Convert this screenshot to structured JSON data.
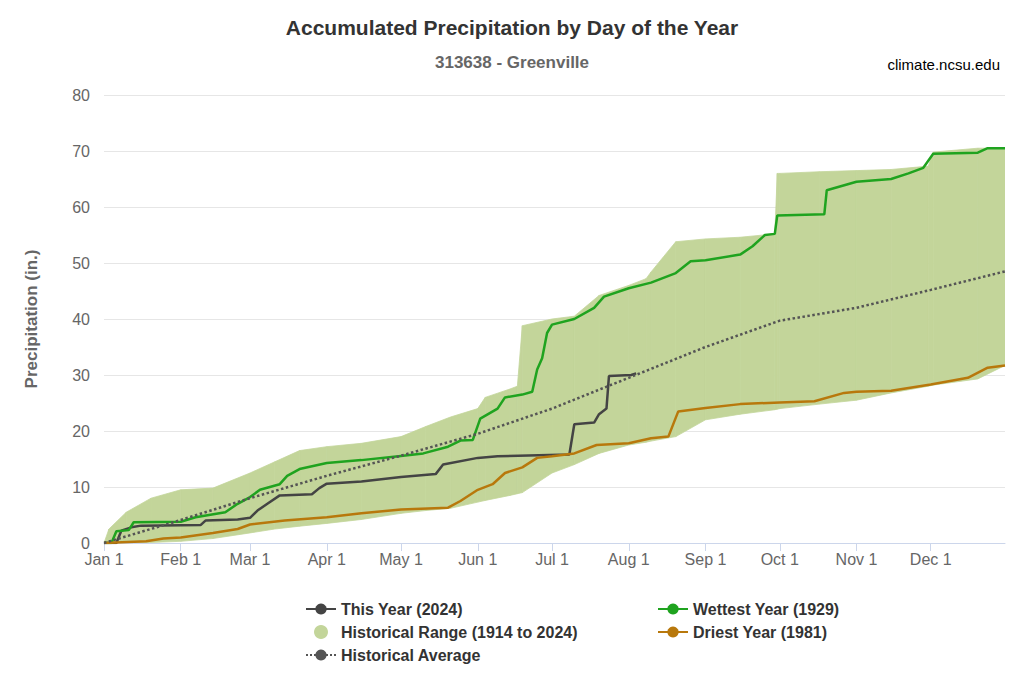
{
  "chart_data": {
    "type": "line",
    "title": "Accumulated Precipitation by Day of the Year",
    "subtitle": "313638 - Greenville",
    "annotations": [
      "climate.ncsu.edu"
    ],
    "y_label": "Precipitation (in.)",
    "xlim": [
      1,
      365
    ],
    "xticks": [
      {
        "value": 1,
        "label": "Jan 1"
      },
      {
        "value": 32,
        "label": "Feb 1"
      },
      {
        "value": 60,
        "label": "Mar 1"
      },
      {
        "value": 91,
        "label": "Apr 1"
      },
      {
        "value": 121,
        "label": "May 1"
      },
      {
        "value": 152,
        "label": "Jun 1"
      },
      {
        "value": 182,
        "label": "Jul 1"
      },
      {
        "value": 213,
        "label": "Aug 1"
      },
      {
        "value": 244,
        "label": "Sep 1"
      },
      {
        "value": 274,
        "label": "Oct 1"
      },
      {
        "value": 305,
        "label": "Nov 1"
      },
      {
        "value": 335,
        "label": "Dec 1"
      }
    ],
    "ylim": [
      0,
      80
    ],
    "yticks": [
      0,
      10,
      20,
      30,
      40,
      50,
      60,
      70,
      80
    ],
    "grid": true,
    "legend": "bottom",
    "series": [
      {
        "name": "This Year (2024)",
        "color": "#444444",
        "line_style": "solid",
        "marker": "none",
        "x": [
          1,
          6,
          8,
          12,
          16,
          40,
          42,
          55,
          60,
          63,
          67,
          72,
          85,
          88,
          91,
          105,
          121,
          135,
          138,
          152,
          160,
          189,
          191,
          199,
          201,
          204,
          205,
          214,
          216
        ],
        "values": [
          0,
          0,
          2.2,
          2.8,
          3.1,
          3.2,
          4,
          4.2,
          4.5,
          5.8,
          7,
          8.5,
          8.7,
          9.8,
          10.6,
          11,
          11.8,
          12.3,
          14,
          15.2,
          15.5,
          15.8,
          21.2,
          21.5,
          23,
          24,
          29.8,
          30,
          30.3
        ]
      },
      {
        "name": "Wettest Year (1929)",
        "color": "#1fa31f",
        "line_style": "solid",
        "marker": "none",
        "x": [
          1,
          4,
          6,
          11,
          13,
          32,
          38,
          50,
          55,
          60,
          64,
          72,
          75,
          80,
          91,
          105,
          120,
          130,
          140,
          145,
          150,
          153,
          160,
          163,
          170,
          174,
          176,
          178,
          180,
          182,
          191,
          199,
          203,
          213,
          222,
          232,
          238,
          244,
          258,
          263,
          268,
          272,
          273,
          292,
          293,
          305,
          319,
          326,
          332,
          336,
          354,
          358,
          365
        ],
        "values": [
          0,
          0,
          2.1,
          2.3,
          3.7,
          3.8,
          4.6,
          5.5,
          7,
          8.2,
          9.5,
          10.5,
          12,
          13.2,
          14.3,
          14.8,
          15.5,
          16,
          17.2,
          18.3,
          18.4,
          22.2,
          24,
          26,
          26.5,
          27,
          31,
          33,
          37.5,
          39,
          40,
          42,
          44,
          45.5,
          46.5,
          48.2,
          50.3,
          50.5,
          51.5,
          53,
          55,
          55.2,
          58.5,
          58.7,
          63,
          64.5,
          65,
          66,
          67,
          69.5,
          69.7,
          70.5,
          70.5
        ]
      },
      {
        "name": "Historical Range (1914 to 2024)",
        "type": "range",
        "color": "#c3d59a",
        "marker": "circle",
        "x": [
          1,
          3,
          10,
          20,
          32,
          45,
          60,
          70,
          80,
          91,
          105,
          121,
          131,
          141,
          152,
          155,
          165,
          168,
          170,
          182,
          191,
          201,
          213,
          220,
          222,
          232,
          244,
          258,
          272,
          273,
          274,
          290,
          305,
          319,
          334,
          336,
          354,
          365
        ],
        "low": [
          0,
          0,
          0,
          0.1,
          0.3,
          0.8,
          1.8,
          2.5,
          3,
          3.5,
          4.2,
          5.3,
          5.8,
          6.2,
          7.3,
          7.6,
          8.5,
          8.8,
          9,
          12.5,
          14,
          16,
          17.5,
          18,
          18.2,
          19,
          22,
          23,
          23.8,
          23.9,
          24,
          24.8,
          25.5,
          26.8,
          28,
          28.2,
          29.3,
          31.7
        ],
        "high": [
          0,
          2.5,
          5.5,
          8,
          9.5,
          9.8,
          12.5,
          14.5,
          16.5,
          17.2,
          17.8,
          19,
          20.8,
          22.5,
          24,
          26,
          27.5,
          28,
          38.8,
          40,
          40.5,
          44.2,
          46,
          47.2,
          48.4,
          53.8,
          54.3,
          54.6,
          55.2,
          66,
          66,
          66.3,
          66.5,
          66.7,
          67.3,
          69.8,
          70.5,
          70.5
        ]
      },
      {
        "name": "Driest Year (1981)",
        "color": "#b8780c",
        "line_style": "solid",
        "marker": "none",
        "x": [
          1,
          18,
          25,
          32,
          45,
          55,
          60,
          74,
          91,
          105,
          121,
          140,
          145,
          152,
          158,
          163,
          170,
          176,
          182,
          191,
          200,
          213,
          222,
          229,
          233,
          244,
          258,
          274,
          288,
          300,
          305,
          319,
          335,
          350,
          358,
          365
        ],
        "values": [
          0,
          0.3,
          0.8,
          1,
          1.8,
          2.5,
          3.3,
          4,
          4.6,
          5.3,
          6,
          6.3,
          7.5,
          9.5,
          10.5,
          12.5,
          13.5,
          15.2,
          15.5,
          16,
          17.5,
          17.8,
          18.7,
          19,
          23.5,
          24.1,
          24.8,
          25.1,
          25.3,
          26.8,
          27,
          27.2,
          28.3,
          29.5,
          31.3,
          31.7
        ]
      },
      {
        "name": "Historical Average",
        "color": "#555555",
        "line_style": "dotted",
        "marker": "none",
        "x": [
          1,
          32,
          60,
          91,
          121,
          152,
          182,
          213,
          244,
          274,
          305,
          335,
          365
        ],
        "values": [
          0,
          4.1,
          8,
          12,
          15.6,
          19.5,
          24,
          29.5,
          35,
          39.7,
          42,
          45.2,
          48.5
        ]
      }
    ]
  }
}
